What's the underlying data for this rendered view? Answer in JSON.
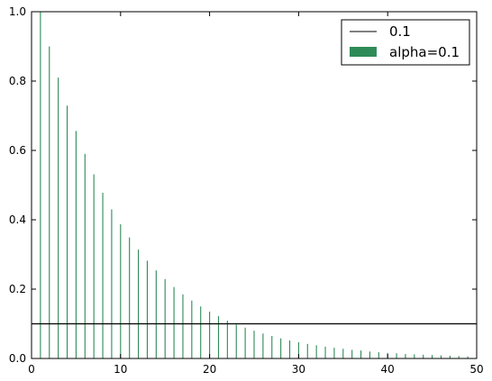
{
  "chart_data": {
    "type": "bar",
    "title": "",
    "xlabel": "",
    "ylabel": "",
    "xlim": [
      0,
      50
    ],
    "ylim": [
      0,
      1.0
    ],
    "x_ticks": [
      "0",
      "10",
      "20",
      "30",
      "40",
      "50"
    ],
    "y_ticks": [
      "0.0",
      "0.2",
      "0.4",
      "0.6",
      "0.8",
      "1.0"
    ],
    "grid": false,
    "legend_position": "top-right",
    "series": [
      {
        "name": "alpha=0.1",
        "kind": "bar",
        "color": "#2e8b57",
        "x": [
          1,
          2,
          3,
          4,
          5,
          6,
          7,
          8,
          9,
          10,
          11,
          12,
          13,
          14,
          15,
          16,
          17,
          18,
          19,
          20,
          21,
          22,
          23,
          24,
          25,
          26,
          27,
          28,
          29,
          30,
          31,
          32,
          33,
          34,
          35,
          36,
          37,
          38,
          39,
          40,
          41,
          42,
          43,
          44,
          45,
          46,
          47,
          48,
          49
        ],
        "values": [
          1.0,
          0.9,
          0.81,
          0.729,
          0.656,
          0.59,
          0.531,
          0.478,
          0.43,
          0.387,
          0.349,
          0.314,
          0.282,
          0.254,
          0.229,
          0.206,
          0.185,
          0.167,
          0.15,
          0.135,
          0.122,
          0.109,
          0.098,
          0.089,
          0.08,
          0.072,
          0.065,
          0.058,
          0.052,
          0.047,
          0.042,
          0.038,
          0.034,
          0.031,
          0.028,
          0.025,
          0.023,
          0.02,
          0.018,
          0.016,
          0.015,
          0.013,
          0.012,
          0.011,
          0.01,
          0.009,
          0.008,
          0.007,
          0.006
        ]
      },
      {
        "name": "0.1",
        "kind": "hline",
        "color": "#000000",
        "y": 0.1
      }
    ]
  }
}
